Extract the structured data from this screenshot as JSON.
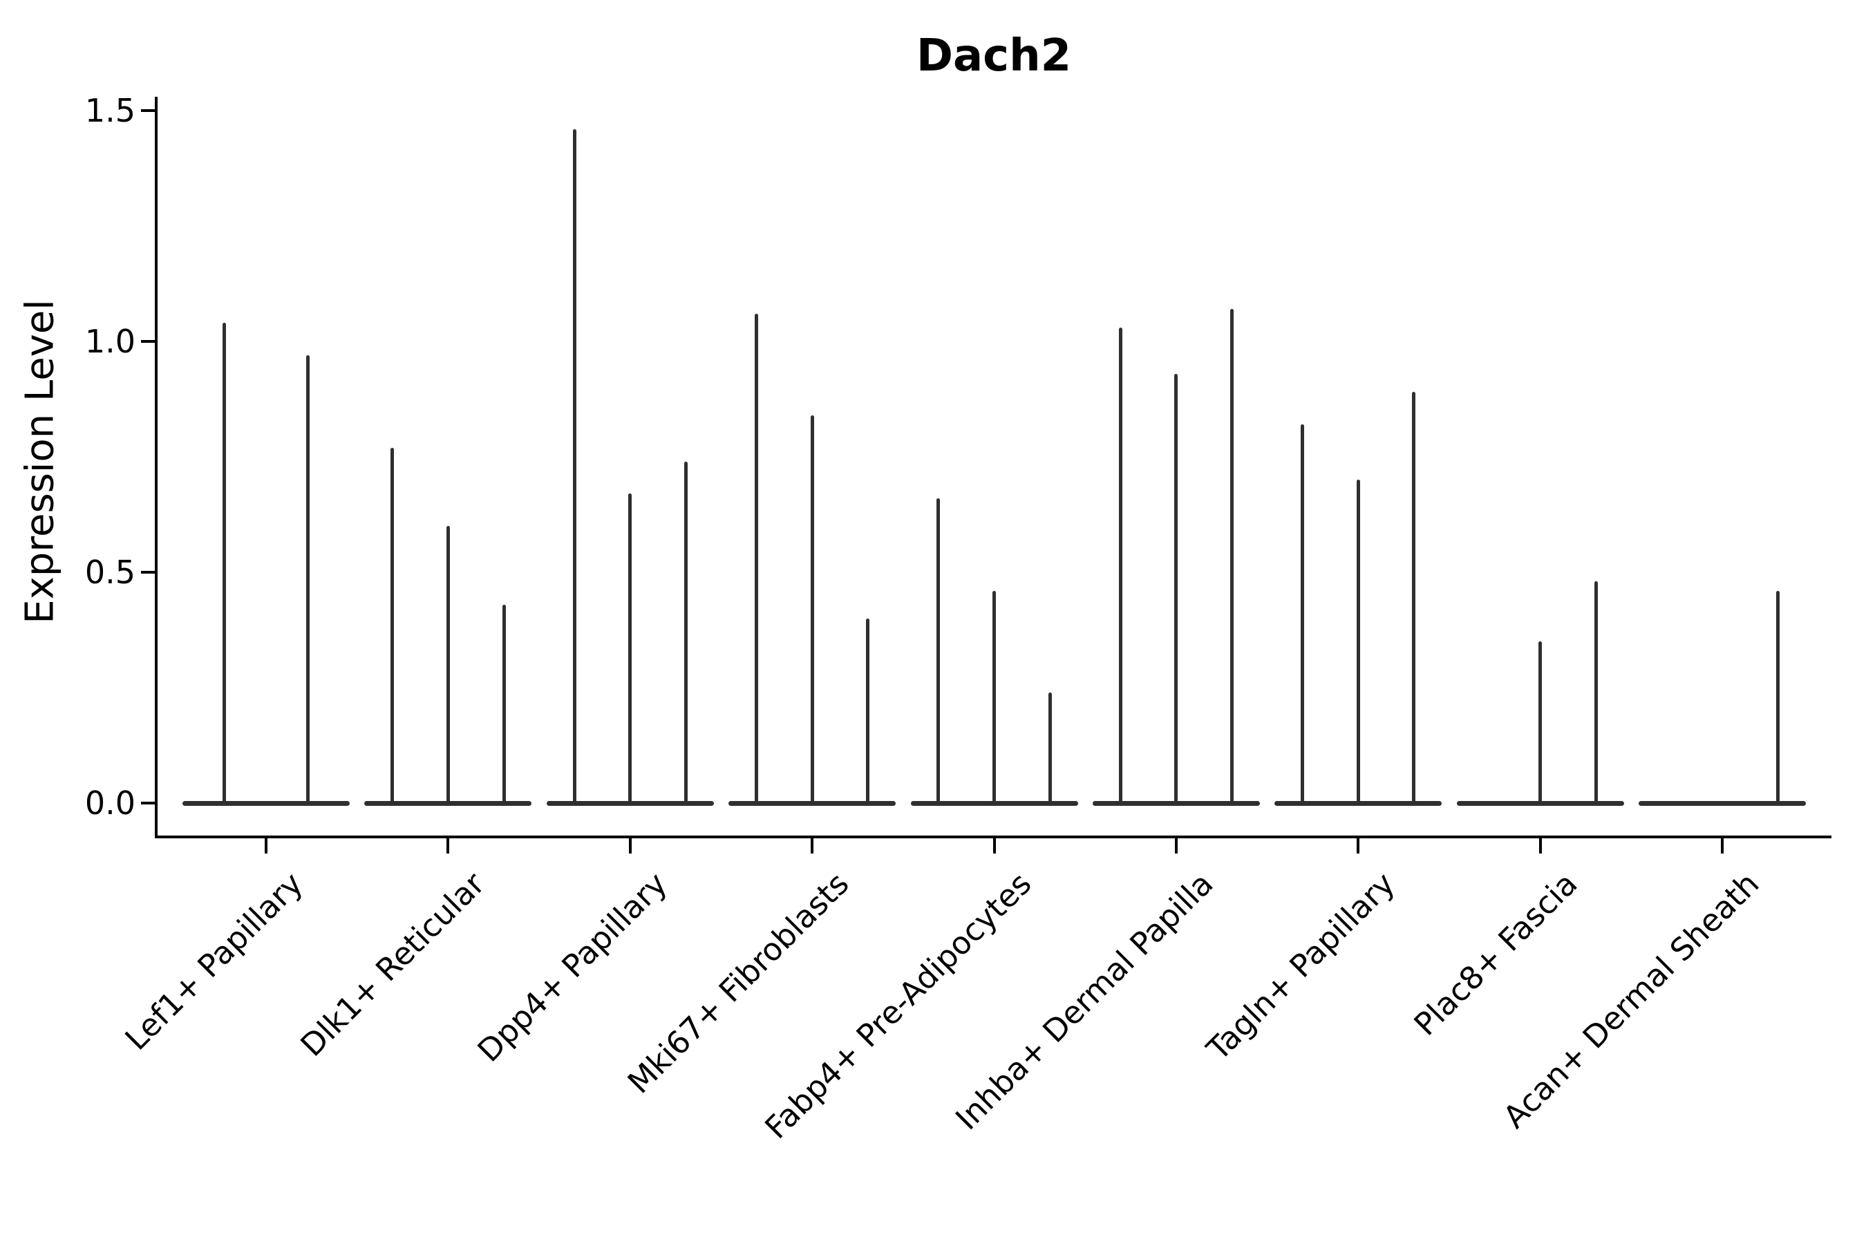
{
  "title": "Dach2",
  "y_axis": {
    "label": "Expression Level",
    "tick_labels": [
      "0.0",
      "0.5",
      "1.0",
      "1.5"
    ],
    "tick_values": [
      0.0,
      0.5,
      1.0,
      1.5
    ]
  },
  "colors": {
    "violin": "#2f2f2f",
    "axis": "#000000",
    "background": "#ffffff"
  },
  "chart_data": {
    "type": "violin",
    "title": "Dach2",
    "xlabel": "",
    "ylabel": "Expression Level",
    "ylim": [
      0,
      1.53
    ],
    "yticks": [
      0.0,
      0.5,
      1.0,
      1.5
    ],
    "ytick_labels": [
      "0.0",
      "0.5",
      "1.0",
      "1.5"
    ],
    "grid": false,
    "legend": "none",
    "x_tick_rotation": 45,
    "description": "Needle-thin violin plots of Dach2 expression; each cell-type category holds up to 3 narrow violins sitting on a flat base at 0; peak = maximum expression reached by each violin (0 = flat base only).",
    "categories": [
      "Lef1+ Papillary",
      "Dlk1+ Reticular",
      "Dpp4+ Papillary",
      "Mki67+ Fibroblasts",
      "Fabp4+ Pre-Adipocytes",
      "Inhba+ Dermal Papilla",
      "Tagln+ Papillary",
      "Plac8+ Fascia",
      "Acan+ Dermal Sheath"
    ],
    "groups": [
      {
        "label": "Lef1+ Papillary",
        "slots": 2,
        "violins": [
          {
            "slot": 0,
            "peak": 1.04
          },
          {
            "slot": 1,
            "peak": 0.97
          }
        ]
      },
      {
        "label": "Dlk1+ Reticular",
        "slots": 3,
        "violins": [
          {
            "slot": 0,
            "peak": 0.77
          },
          {
            "slot": 1,
            "peak": 0.6
          },
          {
            "slot": 2,
            "peak": 0.43
          }
        ]
      },
      {
        "label": "Dpp4+ Papillary",
        "slots": 3,
        "violins": [
          {
            "slot": 0,
            "peak": 1.46
          },
          {
            "slot": 1,
            "peak": 0.67
          },
          {
            "slot": 2,
            "peak": 0.74
          }
        ]
      },
      {
        "label": "Mki67+ Fibroblasts",
        "slots": 3,
        "violins": [
          {
            "slot": 0,
            "peak": 1.06
          },
          {
            "slot": 1,
            "peak": 0.84
          },
          {
            "slot": 2,
            "peak": 0.4
          }
        ]
      },
      {
        "label": "Fabp4+ Pre-Adipocytes",
        "slots": 3,
        "violins": [
          {
            "slot": 0,
            "peak": 0.66
          },
          {
            "slot": 1,
            "peak": 0.46
          },
          {
            "slot": 2,
            "peak": 0.24
          }
        ]
      },
      {
        "label": "Inhba+ Dermal Papilla",
        "slots": 3,
        "violins": [
          {
            "slot": 0,
            "peak": 1.03
          },
          {
            "slot": 1,
            "peak": 0.93
          },
          {
            "slot": 2,
            "peak": 1.07
          }
        ]
      },
      {
        "label": "Tagln+ Papillary",
        "slots": 3,
        "violins": [
          {
            "slot": 0,
            "peak": 0.82
          },
          {
            "slot": 1,
            "peak": 0.7
          },
          {
            "slot": 2,
            "peak": 0.89
          }
        ]
      },
      {
        "label": "Plac8+ Fascia",
        "slots": 3,
        "violins": [
          {
            "slot": 0,
            "peak": 0.0
          },
          {
            "slot": 1,
            "peak": 0.35
          },
          {
            "slot": 2,
            "peak": 0.48
          }
        ]
      },
      {
        "label": "Acan+ Dermal Sheath",
        "slots": 3,
        "violins": [
          {
            "slot": 0,
            "peak": 0.0
          },
          {
            "slot": 1,
            "peak": 0.0
          },
          {
            "slot": 2,
            "peak": 0.46
          }
        ]
      }
    ]
  }
}
